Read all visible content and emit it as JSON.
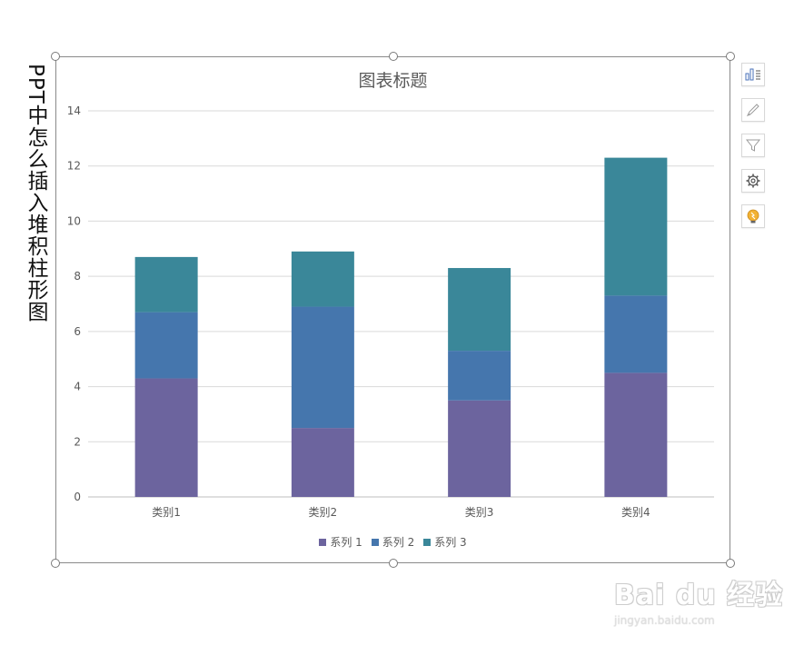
{
  "page": {
    "side_title": "PPT中怎么插入堆积柱形图"
  },
  "chart_data": {
    "type": "bar",
    "stacked": true,
    "title": "图表标题",
    "categories": [
      "类别1",
      "类别2",
      "类别3",
      "类别4"
    ],
    "series": [
      {
        "name": "系列 1",
        "values": [
          4.3,
          2.5,
          3.5,
          4.5
        ],
        "color": "#6c649e"
      },
      {
        "name": "系列 2",
        "values": [
          2.4,
          4.4,
          1.8,
          2.8
        ],
        "color": "#4576ad"
      },
      {
        "name": "系列 3",
        "values": [
          2.0,
          2.0,
          3.0,
          5.0
        ],
        "color": "#3a8799"
      }
    ],
    "ylim": [
      0,
      14
    ],
    "yticks": [
      0,
      2,
      4,
      6,
      8,
      10,
      12,
      14
    ],
    "xlabel": "",
    "ylabel": "",
    "grid": true,
    "legend_position": "bottom"
  },
  "side_tools": [
    {
      "icon": "chart-elements-icon"
    },
    {
      "icon": "chart-styles-brush-icon"
    },
    {
      "icon": "chart-filters-icon"
    },
    {
      "icon": "chart-settings-gear-icon"
    },
    {
      "icon": "lightbulb-idea-icon"
    }
  ],
  "watermark": {
    "text": "Bai du 经验",
    "url": "jingyan.baidu.com"
  },
  "colors": {
    "axis_text": "#595959",
    "gridline": "#d9d9d9",
    "frame": "#8a8a8a"
  }
}
